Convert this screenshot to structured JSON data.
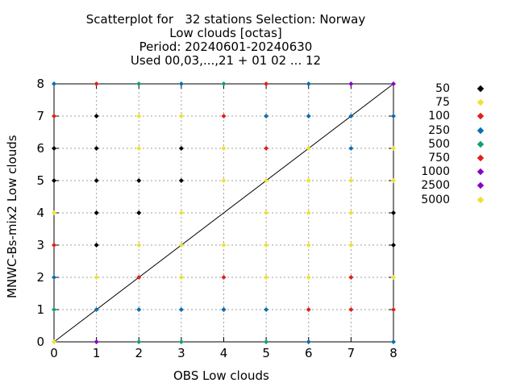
{
  "chart_data": {
    "type": "scatter",
    "title_lines": [
      "Scatterplot for   32 stations Selection: Norway",
      "Low clouds [octas]",
      "Period: 20240601-20240630",
      "Used 00,03,...,21 + 01 02 ... 12"
    ],
    "xlabel": "OBS Low clouds",
    "ylabel": "MNWC-Bs-mix2 Low clouds",
    "xlim": [
      0,
      8
    ],
    "ylim": [
      0,
      8
    ],
    "x_ticks": [
      "0",
      "1",
      "2",
      "3",
      "4",
      "5",
      "6",
      "7",
      "8"
    ],
    "y_ticks": [
      "0",
      "1",
      "2",
      "3",
      "4",
      "5",
      "6",
      "7",
      "8"
    ],
    "grid": true,
    "diagonal_line": true,
    "legend_placement": "right",
    "series": [
      {
        "name": "50",
        "color": "#000000",
        "points": [
          [
            0,
            6
          ],
          [
            0,
            5
          ],
          [
            1,
            7
          ],
          [
            1,
            6
          ],
          [
            1,
            5
          ],
          [
            1,
            4
          ],
          [
            1,
            3
          ],
          [
            2,
            5
          ],
          [
            2,
            4
          ],
          [
            3,
            6
          ],
          [
            3,
            5
          ],
          [
            8,
            4
          ],
          [
            8,
            3
          ]
        ]
      },
      {
        "name": "75",
        "color": "#f0e030",
        "points": [
          [
            0,
            4
          ],
          [
            0,
            0
          ],
          [
            1,
            2
          ],
          [
            2,
            7
          ],
          [
            2,
            6
          ],
          [
            2,
            3
          ],
          [
            3,
            7
          ],
          [
            3,
            4
          ],
          [
            3,
            3
          ],
          [
            3,
            2
          ],
          [
            4,
            6
          ],
          [
            4,
            5
          ],
          [
            4,
            3
          ],
          [
            5,
            7
          ],
          [
            5,
            5
          ],
          [
            5,
            4
          ],
          [
            5,
            3
          ],
          [
            5,
            2
          ],
          [
            6,
            5
          ],
          [
            6,
            4
          ],
          [
            6,
            3
          ],
          [
            6,
            2
          ],
          [
            6,
            6
          ],
          [
            7,
            5
          ],
          [
            7,
            4
          ],
          [
            7,
            3
          ],
          [
            7,
            2
          ],
          [
            8,
            6
          ],
          [
            8,
            5
          ],
          [
            8,
            2
          ]
        ]
      },
      {
        "name": "100",
        "color": "#e0201b",
        "points": [
          [
            0,
            7
          ],
          [
            0,
            3
          ],
          [
            1,
            8
          ],
          [
            2,
            2
          ],
          [
            4,
            7
          ],
          [
            4,
            2
          ],
          [
            4,
            1
          ],
          [
            5,
            6
          ],
          [
            5,
            8
          ],
          [
            6,
            1
          ],
          [
            7,
            2
          ],
          [
            7,
            1
          ],
          [
            8,
            1
          ]
        ]
      },
      {
        "name": "250",
        "color": "#0a6fb0",
        "points": [
          [
            0,
            8
          ],
          [
            0,
            2
          ],
          [
            1,
            1
          ],
          [
            2,
            1
          ],
          [
            3,
            8
          ],
          [
            3,
            1
          ],
          [
            4,
            1
          ],
          [
            5,
            7
          ],
          [
            5,
            1
          ],
          [
            6,
            7
          ],
          [
            6,
            8
          ],
          [
            6,
            0
          ],
          [
            7,
            6
          ],
          [
            7,
            7
          ],
          [
            8,
            7
          ],
          [
            8,
            0
          ]
        ]
      },
      {
        "name": "500",
        "color": "#10a070",
        "points": [
          [
            0,
            1
          ],
          [
            2,
            8
          ],
          [
            2,
            0
          ],
          [
            3,
            0
          ],
          [
            4,
            8
          ],
          [
            5,
            0
          ]
        ]
      },
      {
        "name": "750",
        "color": "#e0201b",
        "points": []
      },
      {
        "name": "1000",
        "color": "#8a00c8",
        "points": [
          [
            7,
            8
          ],
          [
            1,
            0
          ],
          [
            8,
            8
          ]
        ]
      },
      {
        "name": "2500",
        "color": "#8a00c8",
        "points": []
      },
      {
        "name": "5000",
        "color": "#f0e030",
        "points": []
      }
    ]
  }
}
